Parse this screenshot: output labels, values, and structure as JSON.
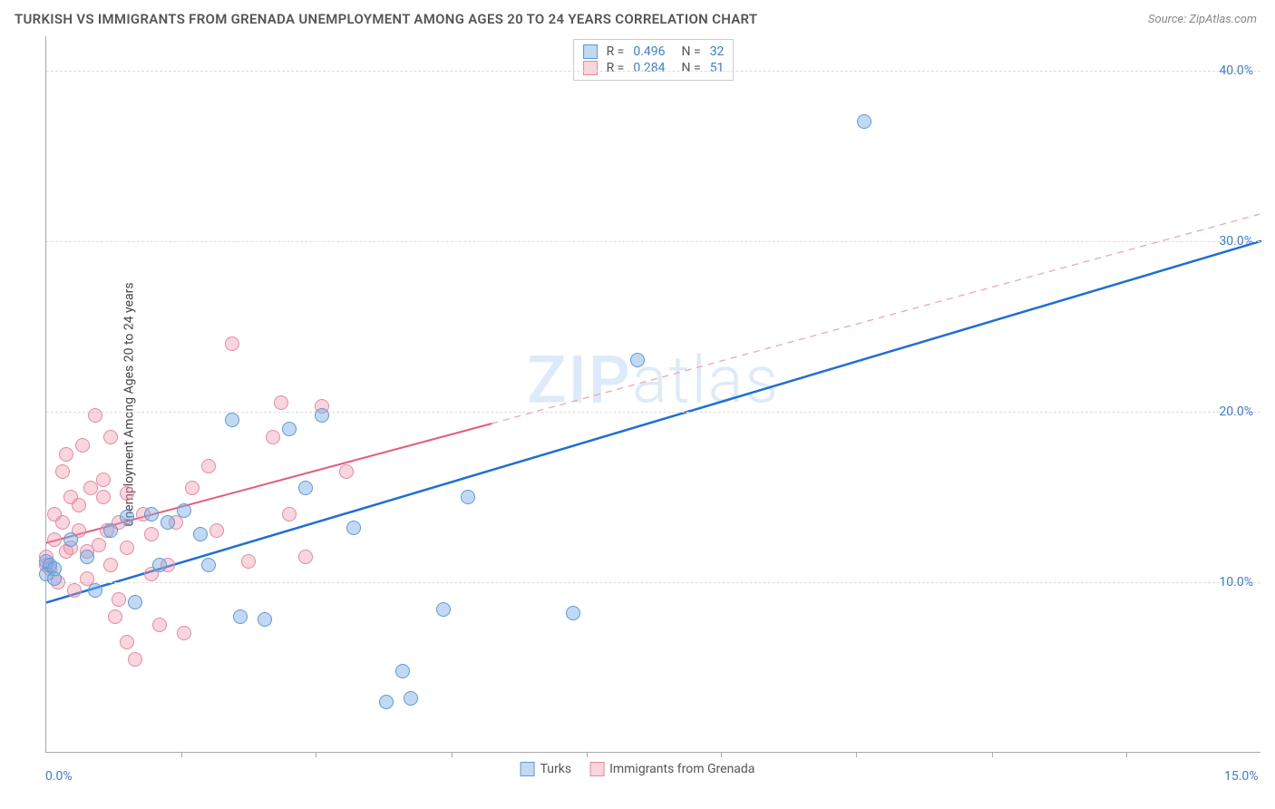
{
  "title": "TURKISH VS IMMIGRANTS FROM GRENADA UNEMPLOYMENT AMONG AGES 20 TO 24 YEARS CORRELATION CHART",
  "source": "Source: ZipAtlas.com",
  "ylabel": "Unemployment Among Ages 20 to 24 years",
  "watermark": {
    "bold": "ZIP",
    "light": "atlas"
  },
  "chart": {
    "type": "scatter",
    "xlim": [
      0,
      15
    ],
    "ylim": [
      0,
      42
    ],
    "yticks": [
      {
        "value": 10,
        "label": "10.0%"
      },
      {
        "value": 20,
        "label": "20.0%"
      },
      {
        "value": 30,
        "label": "30.0%"
      },
      {
        "value": 40,
        "label": "40.0%"
      }
    ],
    "xticks_minor": [
      1.67,
      3.33,
      5.0,
      6.67,
      8.33,
      10.0,
      11.67,
      13.33
    ],
    "xtick_labels": [
      {
        "value": 0,
        "label": "0.0%"
      },
      {
        "value": 15,
        "label": "15.0%"
      }
    ],
    "grid_color": "#dddddd",
    "axis_color": "#aaaaaa",
    "background_color": "#ffffff",
    "label_fontsize": 14,
    "tick_color": "#3b7dd8",
    "series": [
      {
        "name": "Turks",
        "color_fill": "rgba(120,170,230,0.45)",
        "color_stroke": "#5b9bd5",
        "marker": "circle",
        "marker_size": 16,
        "regression": {
          "x1": 0,
          "y1": 8.8,
          "x2": 15,
          "y2": 30.0,
          "stroke": "#1f6fd4",
          "stroke_width": 2.5,
          "dash": "none"
        },
        "points": [
          [
            0.0,
            11.2
          ],
          [
            0.0,
            10.5
          ],
          [
            0.05,
            11.0
          ],
          [
            0.1,
            10.8
          ],
          [
            0.1,
            10.2
          ],
          [
            0.3,
            12.5
          ],
          [
            0.5,
            11.5
          ],
          [
            0.6,
            9.5
          ],
          [
            0.8,
            13.0
          ],
          [
            1.0,
            13.8
          ],
          [
            1.1,
            8.8
          ],
          [
            1.3,
            14.0
          ],
          [
            1.4,
            11.0
          ],
          [
            1.5,
            13.5
          ],
          [
            1.7,
            14.2
          ],
          [
            1.9,
            12.8
          ],
          [
            2.0,
            11.0
          ],
          [
            2.3,
            19.5
          ],
          [
            2.4,
            8.0
          ],
          [
            2.7,
            7.8
          ],
          [
            3.0,
            19.0
          ],
          [
            3.2,
            15.5
          ],
          [
            3.4,
            19.8
          ],
          [
            3.8,
            13.2
          ],
          [
            4.2,
            3.0
          ],
          [
            4.4,
            4.8
          ],
          [
            4.5,
            3.2
          ],
          [
            4.9,
            8.4
          ],
          [
            5.2,
            15.0
          ],
          [
            6.5,
            8.2
          ],
          [
            7.3,
            23.0
          ],
          [
            10.1,
            37.0
          ]
        ]
      },
      {
        "name": "Immigrants from Grenada",
        "color_fill": "rgba(240,150,170,0.4)",
        "color_stroke": "#e38ba0",
        "marker": "circle",
        "marker_size": 16,
        "regression": {
          "solid": {
            "x1": 0,
            "y1": 12.3,
            "x2": 5.5,
            "y2": 19.3,
            "stroke": "#e55b7c",
            "stroke_width": 2,
            "dash": "none"
          },
          "dashed": {
            "x1": 5.5,
            "y1": 19.3,
            "x2": 15,
            "y2": 31.6,
            "stroke": "#f0a5b5",
            "stroke_width": 1.3,
            "dash": "7,6"
          }
        },
        "points": [
          [
            0.0,
            11.0
          ],
          [
            0.0,
            11.5
          ],
          [
            0.05,
            10.8
          ],
          [
            0.1,
            12.5
          ],
          [
            0.1,
            14.0
          ],
          [
            0.15,
            10.0
          ],
          [
            0.2,
            13.5
          ],
          [
            0.2,
            16.5
          ],
          [
            0.25,
            11.8
          ],
          [
            0.25,
            17.5
          ],
          [
            0.3,
            12.0
          ],
          [
            0.3,
            15.0
          ],
          [
            0.35,
            9.5
          ],
          [
            0.4,
            13.0
          ],
          [
            0.4,
            14.5
          ],
          [
            0.45,
            18.0
          ],
          [
            0.5,
            10.2
          ],
          [
            0.5,
            11.8
          ],
          [
            0.55,
            15.5
          ],
          [
            0.6,
            19.8
          ],
          [
            0.65,
            12.2
          ],
          [
            0.7,
            15.0
          ],
          [
            0.7,
            16.0
          ],
          [
            0.75,
            13.0
          ],
          [
            0.8,
            11.0
          ],
          [
            0.8,
            18.5
          ],
          [
            0.85,
            8.0
          ],
          [
            0.9,
            9.0
          ],
          [
            0.9,
            13.5
          ],
          [
            1.0,
            6.5
          ],
          [
            1.0,
            12.0
          ],
          [
            1.0,
            15.2
          ],
          [
            1.1,
            5.5
          ],
          [
            1.2,
            14.0
          ],
          [
            1.3,
            10.5
          ],
          [
            1.3,
            12.8
          ],
          [
            1.4,
            7.5
          ],
          [
            1.5,
            11.0
          ],
          [
            1.6,
            13.5
          ],
          [
            1.7,
            7.0
          ],
          [
            1.8,
            15.5
          ],
          [
            2.0,
            16.8
          ],
          [
            2.1,
            13.0
          ],
          [
            2.3,
            24.0
          ],
          [
            2.5,
            11.2
          ],
          [
            2.8,
            18.5
          ],
          [
            2.9,
            20.5
          ],
          [
            3.0,
            14.0
          ],
          [
            3.2,
            11.5
          ],
          [
            3.4,
            20.3
          ],
          [
            3.7,
            16.5
          ]
        ]
      }
    ],
    "stat_legend": [
      {
        "swatch": "blue",
        "r_label": "R =",
        "r": "0.496",
        "n_label": "N =",
        "n": "32"
      },
      {
        "swatch": "pink",
        "r_label": "R =",
        "r": "0.284",
        "n_label": "N =",
        "n": "51"
      }
    ],
    "bottom_legend": [
      {
        "swatch": "blue",
        "label": "Turks"
      },
      {
        "swatch": "pink",
        "label": "Immigrants from Grenada"
      }
    ]
  }
}
